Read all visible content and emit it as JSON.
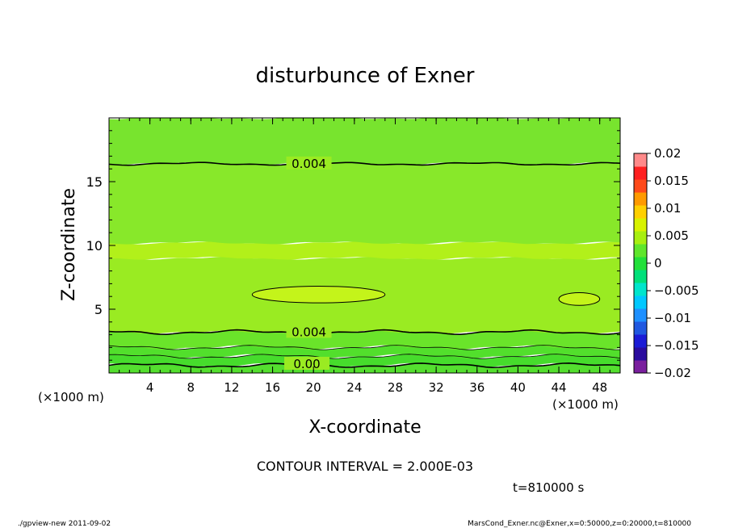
{
  "chart_data": {
    "type": "heatmap",
    "title": "disturbunce of Exner",
    "xlabel": "X-coordinate",
    "ylabel": "Z-coordinate",
    "x_unit": "(×1000 m)",
    "x_range": [
      0,
      50
    ],
    "y_range": [
      0,
      20
    ],
    "x_ticks": [
      4,
      8,
      12,
      16,
      20,
      24,
      28,
      32,
      36,
      40,
      44,
      48
    ],
    "y_ticks": [
      5,
      10,
      15
    ],
    "contour_interval": "CONTOUR INTERVAL = 2.000E-03",
    "time_label": "t=810000 s",
    "contour_labels": [
      {
        "text": "0.004",
        "x": 17.5,
        "z": 16.4
      },
      {
        "text": "0.004",
        "x": 17.5,
        "z": 3.2
      },
      {
        "text": "0.00",
        "x": 17.3,
        "z": 0.7
      }
    ],
    "colorbar": {
      "ticks": [
        "0.02",
        "0.015",
        "0.01",
        "0.005",
        "0",
        "−0.005",
        "−0.01",
        "−0.015",
        "−0.02"
      ],
      "levels": [
        -0.02,
        -0.0175,
        -0.015,
        -0.0125,
        -0.01,
        -0.0075,
        -0.005,
        -0.0025,
        0,
        0.0025,
        0.005,
        0.0075,
        0.01,
        0.0125,
        0.015,
        0.0175,
        0.02
      ],
      "colors": [
        "#7a1f9e",
        "#2a0c9e",
        "#1b1bd6",
        "#2058e0",
        "#1e90ff",
        "#00c8ff",
        "#00e5cc",
        "#00e07a",
        "#22e03a",
        "#5fe62c",
        "#a8ef10",
        "#d8f200",
        "#ffd000",
        "#ff9a00",
        "#ff4a1a",
        "#ff2020",
        "#ff8a8a"
      ]
    },
    "layers": [
      {
        "z0": 0,
        "z1": 0.6,
        "value": 0.0028,
        "color": "#54df2f"
      },
      {
        "z0": 0.6,
        "z1": 1.3,
        "value": 0.0021,
        "color": "#46dc2c"
      },
      {
        "z0": 1.3,
        "z1": 2.0,
        "value": 0.0025,
        "color": "#52df2c"
      },
      {
        "z0": 2.0,
        "z1": 3.2,
        "value": 0.0033,
        "color": "#6ae42a"
      },
      {
        "z0": 3.2,
        "z1": 9.0,
        "value": 0.0047,
        "color": "#9aeb22"
      },
      {
        "z0": 9.0,
        "z1": 10.2,
        "value": 0.0052,
        "color": "#b2f01a"
      },
      {
        "z0": 10.2,
        "z1": 16.4,
        "value": 0.0041,
        "color": "#88e82a"
      },
      {
        "z0": 16.4,
        "z1": 20,
        "value": 0.0033,
        "color": "#78e42e"
      }
    ],
    "regions": [
      {
        "region": "high",
        "x_range": [
          14,
          27
        ],
        "z_range": [
          5.5,
          6.8
        ],
        "value": 0.0062,
        "color": "#c4f41a"
      },
      {
        "region": "high",
        "x_range": [
          44,
          48
        ],
        "z_range": [
          5.3,
          6.3
        ],
        "value": 0.0061,
        "color": "#c4f41a"
      }
    ]
  },
  "footer": {
    "left": "./gpview-new   2011-09-02",
    "right": "MarsCond_Exner.nc@Exner,x=0:50000,z=0:20000,t=810000"
  }
}
